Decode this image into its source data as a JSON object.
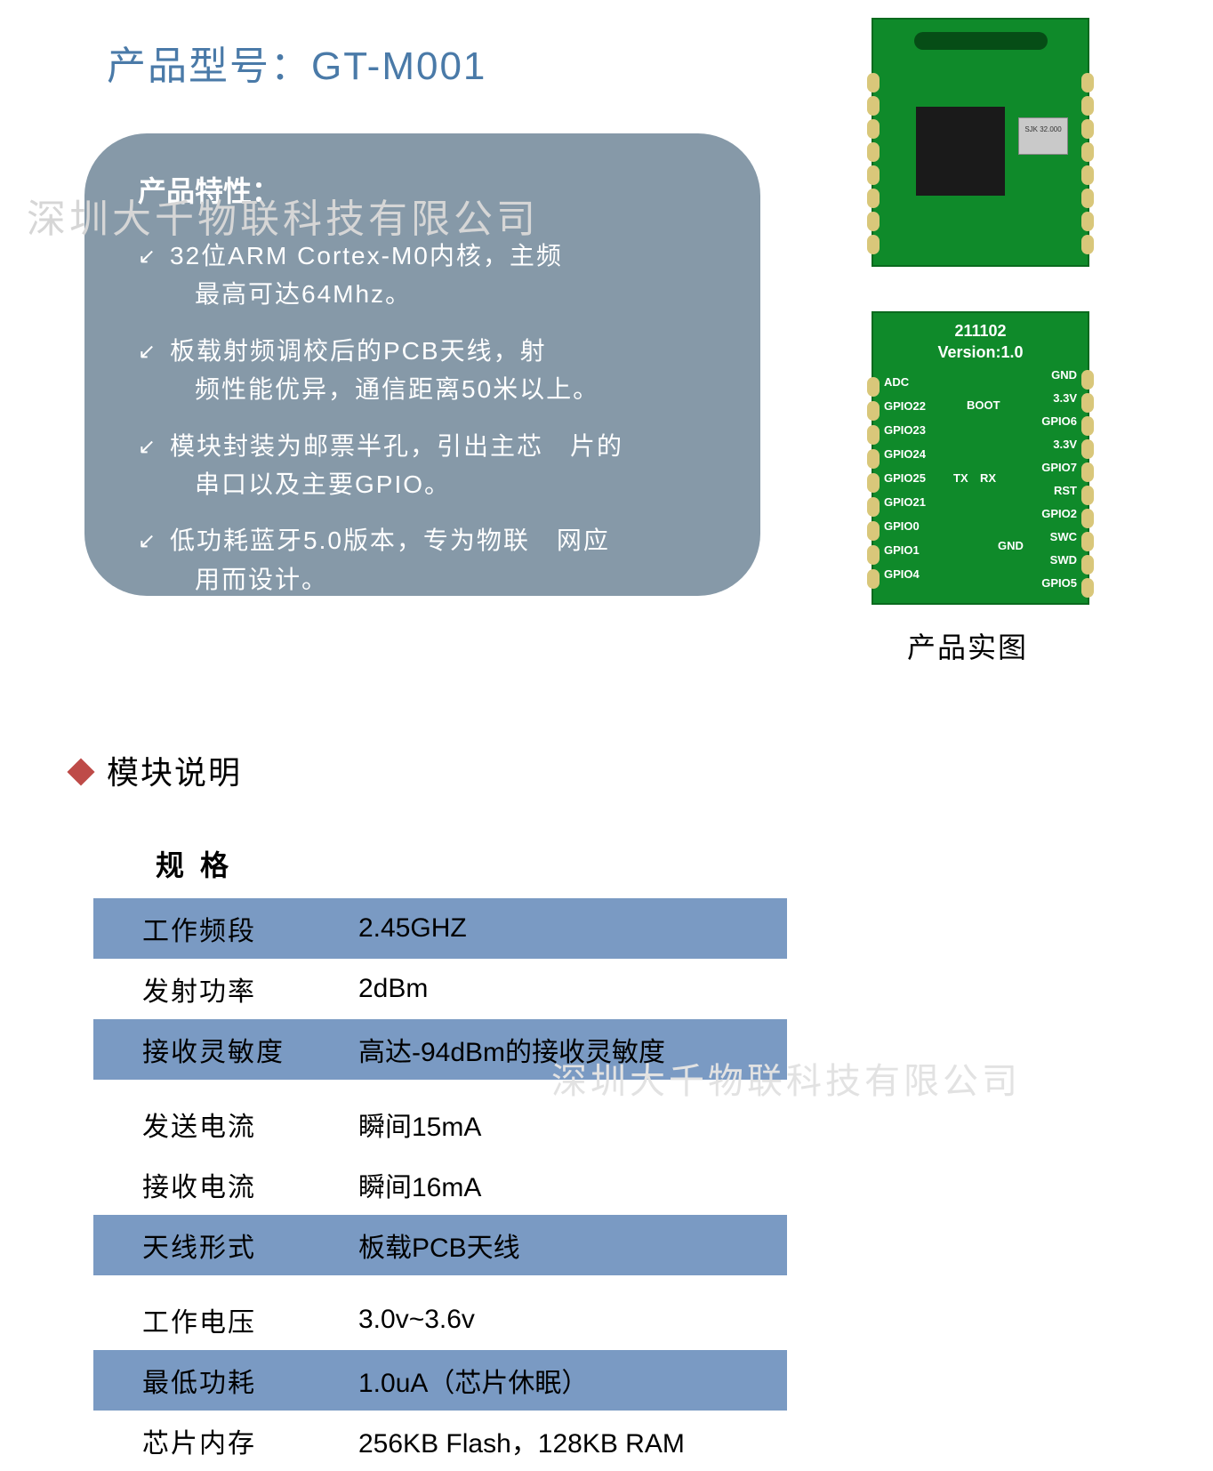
{
  "colors": {
    "title": "#4a7aa8",
    "features_box_bg": "#8699a8",
    "features_text": "#ffffff",
    "diamond": "#be4b48",
    "band_bg": "#7a9ac3",
    "watermark": "#d6d6d6",
    "pcb_green": "#0f8a2a",
    "pcb_silk": "#ffffff"
  },
  "title": {
    "label": "产品型号：",
    "model": "GT-M001"
  },
  "watermark": "深圳大千物联科技有限公司",
  "features": {
    "heading": "产品特性：",
    "items": [
      {
        "l1": "32位ARM Cortex-M0内核，主频",
        "l2": "最高可达64Mhz。"
      },
      {
        "l1": "板载射频调校后的PCB天线，射",
        "l2": "频性能优异，通信距离50米以上。"
      },
      {
        "l1": "模块封装为邮票半孔，引出主芯　片的",
        "l2": "串口以及主要GPIO。"
      },
      {
        "l1": "低功耗蓝牙5.0版本，专为物联　网应",
        "l2": "用而设计。"
      }
    ]
  },
  "pcb": {
    "caption": "产品实图",
    "front": {
      "xtal": "SJK\n32.000"
    },
    "back": {
      "date_code": "211102",
      "version": "Version:1.0",
      "left_pins": [
        "ADC",
        "GPIO22",
        "GPIO23",
        "GPIO24",
        "GPIO25",
        "GPIO21",
        "GPIO0",
        "GPIO1",
        "GPIO4"
      ],
      "right_pins": [
        "GND",
        "3.3V",
        "GPIO6",
        "3.3V",
        "GPIO7",
        "RST",
        "GPIO2",
        "SWC",
        "SWD",
        "GPIO5"
      ],
      "inner": [
        "BOOT",
        "TX",
        "RX",
        "GND"
      ]
    }
  },
  "section2": {
    "title": "模块说明"
  },
  "spec": {
    "header": "规格",
    "rows": [
      {
        "band": true,
        "k": "工作频段",
        "v": "2.45GHZ"
      },
      {
        "band": false,
        "k": "发射功率",
        "v": "2dBm"
      },
      {
        "band": true,
        "k": "接收灵敏度",
        "v": "高达-94dBm的接收灵敏度"
      },
      {
        "band": false,
        "gap": true
      },
      {
        "band": false,
        "k": "发送电流",
        "v": "瞬间15mA"
      },
      {
        "band": false,
        "k": "接收电流",
        "v": "瞬间16mA"
      },
      {
        "band": true,
        "k": "天线形式",
        "v": "板载PCB天线"
      },
      {
        "band": false,
        "gap": true
      },
      {
        "band": false,
        "k": "工作电压",
        "v": "3.0v~3.6v"
      },
      {
        "band": true,
        "k": "最低功耗",
        "v": "1.0uA（芯片休眠）"
      },
      {
        "band": false,
        "k": "芯片内存",
        "v": "256KB Flash，128KB RAM"
      }
    ]
  }
}
